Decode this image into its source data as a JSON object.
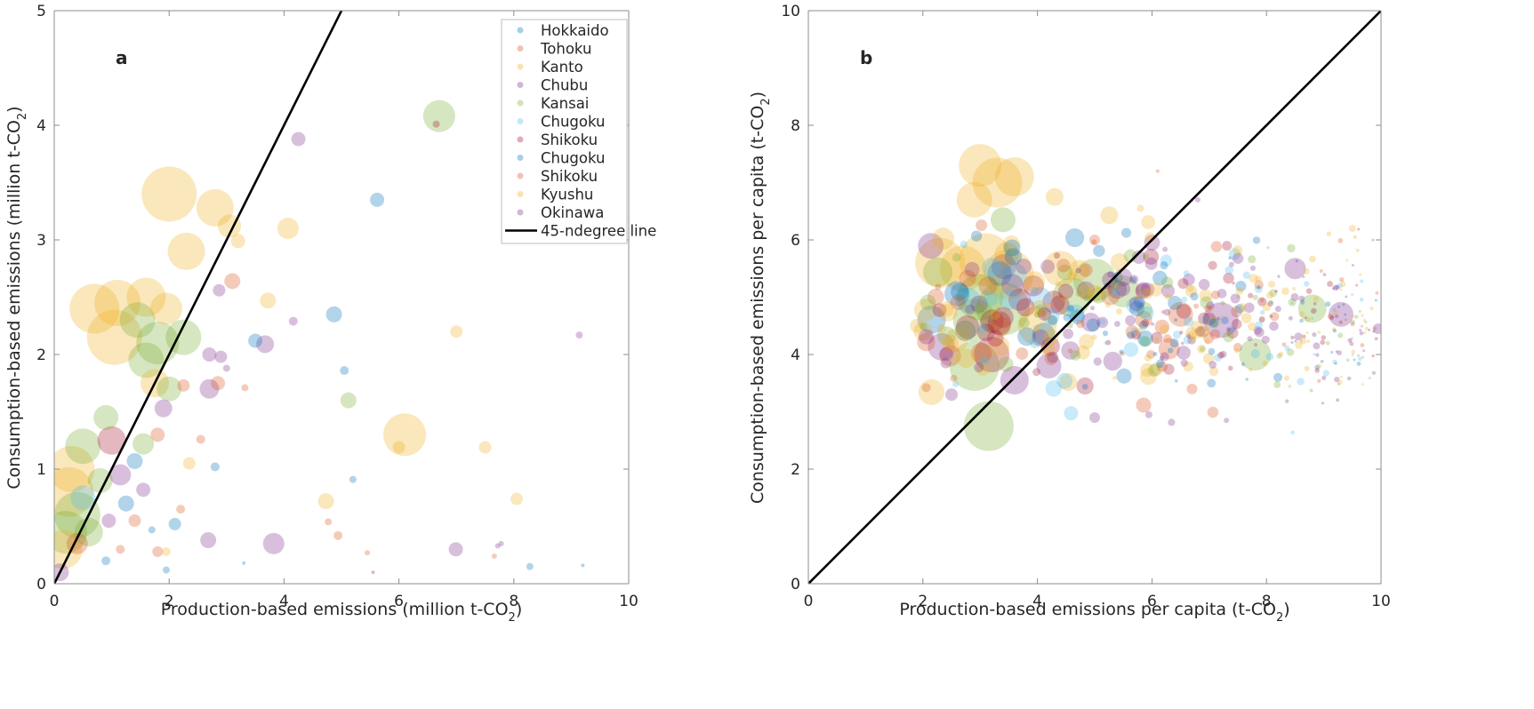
{
  "chart_data": [
    {
      "id": "a",
      "type": "scatter",
      "panel_label": "a",
      "title": "",
      "xlabel": "Production-based emissions (million t-CO",
      "xlabel_sub": "2",
      "xlabel_end": ")",
      "ylabel": "Consumption-based emissions (million t-CO",
      "ylabel_sub": "2",
      "ylabel_end": ")",
      "xlim": [
        0,
        10
      ],
      "ylim": [
        0,
        5
      ],
      "xticks": [
        0,
        2,
        4,
        6,
        8,
        10
      ],
      "yticks": [
        0,
        1,
        2,
        3,
        4,
        5
      ],
      "grid": false,
      "legend_position": "top-right",
      "reference_line": {
        "label": "45-ndegree line",
        "from": [
          0,
          0
        ],
        "to": [
          10,
          10
        ]
      },
      "legend": [
        {
          "name": "Hokkaido",
          "color": "#0072BD"
        },
        {
          "name": "Tohoku",
          "color": "#D95319"
        },
        {
          "name": "Kanto",
          "color": "#EDB120"
        },
        {
          "name": "Chubu",
          "color": "#7E2F8E"
        },
        {
          "name": "Kansai",
          "color": "#77AC30"
        },
        {
          "name": "Chugoku",
          "color": "#4DBEEE"
        },
        {
          "name": "Shikoku",
          "color": "#A2142F"
        },
        {
          "name": "Chugoku",
          "color": "#0072BD"
        },
        {
          "name": "Shikoku",
          "color": "#D95319"
        },
        {
          "name": "Kyushu",
          "color": "#EDB120"
        },
        {
          "name": "Okinawa",
          "color": "#7E2F8E"
        },
        {
          "name": "45-ndegree line",
          "color": "#000000",
          "line": true
        }
      ],
      "points": [
        {
          "x": 6.7,
          "y": 4.08,
          "s": 18,
          "c": "Kansai"
        },
        {
          "x": 6.65,
          "y": 4.01,
          "s": 4,
          "c": "Shikoku"
        },
        {
          "x": 4.25,
          "y": 3.88,
          "s": 8,
          "c": "Chubu"
        },
        {
          "x": 5.62,
          "y": 3.35,
          "s": 8,
          "c": "Hokkaido"
        },
        {
          "x": 2.0,
          "y": 3.4,
          "s": 31,
          "c": "Kanto"
        },
        {
          "x": 2.8,
          "y": 3.28,
          "s": 21,
          "c": "Kanto"
        },
        {
          "x": 3.05,
          "y": 3.12,
          "s": 13,
          "c": "Kanto"
        },
        {
          "x": 3.2,
          "y": 2.99,
          "s": 8,
          "c": "Kanto"
        },
        {
          "x": 4.07,
          "y": 3.1,
          "s": 12,
          "c": "Kanto"
        },
        {
          "x": 2.3,
          "y": 2.9,
          "s": 21,
          "c": "Kanto"
        },
        {
          "x": 3.1,
          "y": 2.64,
          "s": 9,
          "c": "Tohoku"
        },
        {
          "x": 2.87,
          "y": 2.56,
          "s": 7,
          "c": "Chubu"
        },
        {
          "x": 3.72,
          "y": 2.47,
          "s": 9,
          "c": "Kanto"
        },
        {
          "x": 4.16,
          "y": 2.29,
          "s": 5,
          "c": "Chubu"
        },
        {
          "x": 4.87,
          "y": 2.35,
          "s": 9,
          "c": "Hokkaido"
        },
        {
          "x": 3.5,
          "y": 2.12,
          "s": 8,
          "c": "Hokkaido"
        },
        {
          "x": 3.67,
          "y": 2.09,
          "s": 10,
          "c": "Chubu"
        },
        {
          "x": 7.0,
          "y": 2.2,
          "s": 7,
          "c": "Kanto"
        },
        {
          "x": 9.14,
          "y": 2.17,
          "s": 4,
          "c": "Chubu"
        },
        {
          "x": 5.05,
          "y": 1.86,
          "s": 5,
          "c": "Hokkaido"
        },
        {
          "x": 5.12,
          "y": 1.6,
          "s": 9,
          "c": "Kansai"
        },
        {
          "x": 3.0,
          "y": 1.88,
          "s": 4,
          "c": "Chubu"
        },
        {
          "x": 3.32,
          "y": 1.71,
          "s": 4,
          "c": "Tohoku"
        },
        {
          "x": 6.1,
          "y": 1.3,
          "s": 24,
          "c": "Kanto"
        },
        {
          "x": 6.0,
          "y": 1.19,
          "s": 7,
          "c": "Kanto"
        },
        {
          "x": 7.5,
          "y": 1.19,
          "s": 7,
          "c": "Kanto"
        },
        {
          "x": 5.2,
          "y": 0.91,
          "s": 4,
          "c": "Hokkaido"
        },
        {
          "x": 4.73,
          "y": 0.72,
          "s": 9,
          "c": "Kanto"
        },
        {
          "x": 8.05,
          "y": 0.74,
          "s": 7,
          "c": "Kanto"
        },
        {
          "x": 4.77,
          "y": 0.54,
          "s": 4,
          "c": "Tohoku"
        },
        {
          "x": 4.94,
          "y": 0.42,
          "s": 5,
          "c": "Tohoku"
        },
        {
          "x": 3.82,
          "y": 0.35,
          "s": 12,
          "c": "Chubu"
        },
        {
          "x": 2.68,
          "y": 0.38,
          "s": 9,
          "c": "Chubu"
        },
        {
          "x": 6.99,
          "y": 0.3,
          "s": 8,
          "c": "Chubu"
        },
        {
          "x": 7.72,
          "y": 0.33,
          "s": 3,
          "c": "Chubu"
        },
        {
          "x": 7.78,
          "y": 0.35,
          "s": 3,
          "c": "Chubu"
        },
        {
          "x": 7.66,
          "y": 0.24,
          "s": 3,
          "c": "Tohoku"
        },
        {
          "x": 5.45,
          "y": 0.27,
          "s": 3,
          "c": "Tohoku"
        },
        {
          "x": 3.3,
          "y": 0.18,
          "s": 2,
          "c": "Hokkaido"
        },
        {
          "x": 5.55,
          "y": 0.1,
          "s": 2,
          "c": "Shikoku"
        },
        {
          "x": 8.28,
          "y": 0.15,
          "s": 4,
          "c": "Hokkaido"
        },
        {
          "x": 9.2,
          "y": 0.16,
          "s": 2,
          "c": "Hokkaido"
        },
        {
          "x": 1.95,
          "y": 0.12,
          "s": 4,
          "c": "Hokkaido"
        },
        {
          "x": 2.1,
          "y": 0.52,
          "s": 7,
          "c": "Hokkaido"
        },
        {
          "x": 2.2,
          "y": 0.65,
          "s": 5,
          "c": "Tohoku"
        },
        {
          "x": 1.8,
          "y": 0.28,
          "s": 6,
          "c": "Tohoku"
        },
        {
          "x": 2.8,
          "y": 1.02,
          "s": 5,
          "c": "Hokkaido"
        },
        {
          "x": 2.35,
          "y": 1.05,
          "s": 7,
          "c": "Kanto"
        },
        {
          "x": 2.55,
          "y": 1.26,
          "s": 5,
          "c": "Tohoku"
        },
        {
          "x": 2.7,
          "y": 1.7,
          "s": 11,
          "c": "Chubu"
        },
        {
          "x": 2.85,
          "y": 1.75,
          "s": 8,
          "c": "Tohoku"
        },
        {
          "x": 2.7,
          "y": 2.0,
          "s": 8,
          "c": "Chubu"
        },
        {
          "x": 2.25,
          "y": 1.73,
          "s": 7,
          "c": "Tohoku"
        },
        {
          "x": 2.9,
          "y": 1.98,
          "s": 7,
          "c": "Chubu"
        },
        {
          "x": 1.05,
          "y": 2.15,
          "s": 31,
          "c": "Kanto"
        },
        {
          "x": 0.7,
          "y": 2.4,
          "s": 28,
          "c": "Kanto"
        },
        {
          "x": 1.1,
          "y": 2.45,
          "s": 26,
          "c": "Kanto"
        },
        {
          "x": 1.6,
          "y": 2.5,
          "s": 22,
          "c": "Kanto"
        },
        {
          "x": 1.45,
          "y": 2.3,
          "s": 20,
          "c": "Kansai"
        },
        {
          "x": 1.8,
          "y": 2.1,
          "s": 24,
          "c": "Kansai"
        },
        {
          "x": 2.25,
          "y": 2.15,
          "s": 20,
          "c": "Kansai"
        },
        {
          "x": 1.95,
          "y": 2.4,
          "s": 18,
          "c": "Kanto"
        },
        {
          "x": 1.6,
          "y": 1.95,
          "s": 20,
          "c": "Kansai"
        },
        {
          "x": 1.75,
          "y": 1.75,
          "s": 16,
          "c": "Kanto"
        },
        {
          "x": 2.0,
          "y": 1.7,
          "s": 14,
          "c": "Kansai"
        },
        {
          "x": 1.9,
          "y": 1.53,
          "s": 10,
          "c": "Chubu"
        },
        {
          "x": 1.8,
          "y": 1.3,
          "s": 8,
          "c": "Tohoku"
        },
        {
          "x": 1.55,
          "y": 1.22,
          "s": 12,
          "c": "Kansai"
        },
        {
          "x": 1.4,
          "y": 1.07,
          "s": 9,
          "c": "Hokkaido"
        },
        {
          "x": 1.0,
          "y": 1.25,
          "s": 16,
          "c": "Shikoku"
        },
        {
          "x": 0.9,
          "y": 1.45,
          "s": 14,
          "c": "Kansai"
        },
        {
          "x": 0.5,
          "y": 1.2,
          "s": 20,
          "c": "Kansai"
        },
        {
          "x": 0.3,
          "y": 1.0,
          "s": 26,
          "c": "Kanto"
        },
        {
          "x": 0.25,
          "y": 0.8,
          "s": 28,
          "c": "Kanto"
        },
        {
          "x": 0.4,
          "y": 0.6,
          "s": 26,
          "c": "Kansai"
        },
        {
          "x": 0.5,
          "y": 0.75,
          "s": 14,
          "c": "Chugoku"
        },
        {
          "x": 0.2,
          "y": 0.45,
          "s": 24,
          "c": "Kansai"
        },
        {
          "x": 0.15,
          "y": 0.3,
          "s": 22,
          "c": "Kanto"
        },
        {
          "x": 0.6,
          "y": 0.45,
          "s": 16,
          "c": "Kansai"
        },
        {
          "x": 0.8,
          "y": 0.9,
          "s": 14,
          "c": "Kansai"
        },
        {
          "x": 1.15,
          "y": 0.95,
          "s": 12,
          "c": "Chubu"
        },
        {
          "x": 1.25,
          "y": 0.7,
          "s": 9,
          "c": "Hokkaido"
        },
        {
          "x": 1.55,
          "y": 0.82,
          "s": 8,
          "c": "Chubu"
        },
        {
          "x": 1.4,
          "y": 0.55,
          "s": 7,
          "c": "Tohoku"
        },
        {
          "x": 0.4,
          "y": 0.35,
          "s": 12,
          "c": "Tohoku"
        },
        {
          "x": 0.1,
          "y": 0.1,
          "s": 10,
          "c": "Chubu"
        },
        {
          "x": 0.9,
          "y": 0.2,
          "s": 5,
          "c": "Hokkaido"
        },
        {
          "x": 1.15,
          "y": 0.3,
          "s": 5,
          "c": "Tohoku"
        },
        {
          "x": 1.7,
          "y": 0.47,
          "s": 4,
          "c": "Hokkaido"
        },
        {
          "x": 1.95,
          "y": 0.28,
          "s": 5,
          "c": "Kanto"
        },
        {
          "x": 0.95,
          "y": 0.55,
          "s": 8,
          "c": "Chubu"
        }
      ]
    },
    {
      "id": "b",
      "type": "scatter",
      "panel_label": "b",
      "title": "",
      "xlabel": "Production-based emissions per capita (t-CO",
      "xlabel_sub": "2",
      "xlabel_end": ")",
      "ylabel": "Consumption-based emissions per capita (t-CO",
      "ylabel_sub": "2",
      "ylabel_end": ")",
      "xlim": [
        0,
        10
      ],
      "ylim": [
        0,
        10
      ],
      "xticks": [
        0,
        2,
        4,
        6,
        8,
        10
      ],
      "yticks": [
        0,
        2,
        4,
        6,
        8,
        10
      ],
      "grid": false,
      "reference_line": {
        "label": "45-ndegree line",
        "from": [
          0,
          0
        ],
        "to": [
          10,
          10
        ]
      },
      "cloud": {
        "description": "Dense cloud of several hundred municipalities, x 1.9–10, y 2.7–7.3, mostly y 3.5–6",
        "highlights": [
          {
            "x": 3.0,
            "y": 7.3,
            "s": 24,
            "c": "Kanto"
          },
          {
            "x": 3.3,
            "y": 7.0,
            "s": 28,
            "c": "Kanto"
          },
          {
            "x": 2.9,
            "y": 6.7,
            "s": 20,
            "c": "Kanto"
          },
          {
            "x": 3.6,
            "y": 7.1,
            "s": 22,
            "c": "Kanto"
          },
          {
            "x": 4.3,
            "y": 6.75,
            "s": 10,
            "c": "Kanto"
          },
          {
            "x": 3.4,
            "y": 6.35,
            "s": 14,
            "c": "Kansai"
          },
          {
            "x": 2.3,
            "y": 5.6,
            "s": 28,
            "c": "Kanto"
          },
          {
            "x": 2.7,
            "y": 5.5,
            "s": 26,
            "c": "Kanto"
          },
          {
            "x": 3.1,
            "y": 5.65,
            "s": 30,
            "c": "Kanto"
          },
          {
            "x": 3.5,
            "y": 5.4,
            "s": 28,
            "c": "Kanto"
          },
          {
            "x": 3.6,
            "y": 5.38,
            "s": 14,
            "c": "Chugoku"
          },
          {
            "x": 3.0,
            "y": 5.0,
            "s": 26,
            "c": "Kansai"
          },
          {
            "x": 3.4,
            "y": 4.8,
            "s": 30,
            "c": "Kansai"
          },
          {
            "x": 2.9,
            "y": 4.6,
            "s": 24,
            "c": "Kansai"
          },
          {
            "x": 2.9,
            "y": 3.8,
            "s": 28,
            "c": "Kansai"
          },
          {
            "x": 3.2,
            "y": 4.0,
            "s": 20,
            "c": "Shikoku"
          },
          {
            "x": 3.6,
            "y": 3.55,
            "s": 16,
            "c": "Chubu"
          },
          {
            "x": 3.15,
            "y": 2.75,
            "s": 28,
            "c": "Kansai"
          },
          {
            "x": 2.4,
            "y": 3.85,
            "s": 6,
            "c": "Chubu"
          },
          {
            "x": 2.5,
            "y": 3.3,
            "s": 7,
            "c": "Chubu"
          },
          {
            "x": 1.9,
            "y": 4.5,
            "s": 8,
            "c": "Kanto"
          },
          {
            "x": 5.0,
            "y": 5.3,
            "s": 24,
            "c": "Kansai"
          },
          {
            "x": 4.4,
            "y": 5.5,
            "s": 20,
            "c": "Kanto"
          },
          {
            "x": 4.6,
            "y": 5.0,
            "s": 22,
            "c": "Kansai"
          },
          {
            "x": 4.0,
            "y": 4.5,
            "s": 22,
            "c": "Kanto"
          },
          {
            "x": 5.5,
            "y": 5.1,
            "s": 18,
            "c": "Kansai"
          },
          {
            "x": 4.2,
            "y": 3.8,
            "s": 14,
            "c": "Chubu"
          },
          {
            "x": 6.3,
            "y": 4.1,
            "s": 12,
            "c": "Tohoku"
          },
          {
            "x": 6.5,
            "y": 4.7,
            "s": 14,
            "c": "Tohoku"
          },
          {
            "x": 7.2,
            "y": 4.6,
            "s": 20,
            "c": "Chubu"
          },
          {
            "x": 7.8,
            "y": 4.0,
            "s": 18,
            "c": "Kansai"
          },
          {
            "x": 8.5,
            "y": 5.5,
            "s": 12,
            "c": "Chubu"
          },
          {
            "x": 8.8,
            "y": 4.8,
            "s": 16,
            "c": "Kansai"
          },
          {
            "x": 9.3,
            "y": 4.7,
            "s": 14,
            "c": "Chubu"
          },
          {
            "x": 5.0,
            "y": 6.0,
            "s": 6,
            "c": "Tohoku"
          },
          {
            "x": 6.0,
            "y": 5.95,
            "s": 9,
            "c": "Chubu"
          },
          {
            "x": 6.1,
            "y": 7.2,
            "s": 2,
            "c": "Tohoku"
          },
          {
            "x": 6.8,
            "y": 6.7,
            "s": 3,
            "c": "Chubu"
          },
          {
            "x": 5.8,
            "y": 6.55,
            "s": 4,
            "c": "Kanto"
          },
          {
            "x": 9.5,
            "y": 6.2,
            "s": 4,
            "c": "Kanto"
          },
          {
            "x": 9.95,
            "y": 4.45,
            "s": 6,
            "c": "Chubu"
          },
          {
            "x": 5.0,
            "y": 2.9,
            "s": 6,
            "c": "Chubu"
          },
          {
            "x": 6.7,
            "y": 3.4,
            "s": 6,
            "c": "Tohoku"
          },
          {
            "x": 7.3,
            "y": 2.85,
            "s": 3,
            "c": "Chubu"
          },
          {
            "x": 8.2,
            "y": 3.6,
            "s": 5,
            "c": "Hokkaido"
          },
          {
            "x": 5.4,
            "y": 5.35,
            "s": 6,
            "c": "Hokkaido"
          },
          {
            "x": 6.4,
            "y": 4.9,
            "s": 8,
            "c": "Hokkaido"
          }
        ]
      }
    }
  ]
}
